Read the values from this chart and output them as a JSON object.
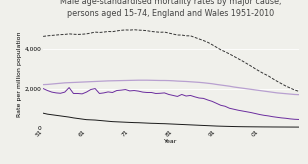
{
  "title": "Male age-standardised mortality rates by major cause,\npersons aged 15-74, England and Wales 1951-2010",
  "xlabel": "Year",
  "ylabel": "Rate per million population",
  "years": [
    1951,
    1952,
    1953,
    1954,
    1955,
    1956,
    1957,
    1958,
    1959,
    1960,
    1961,
    1962,
    1963,
    1964,
    1965,
    1966,
    1967,
    1968,
    1969,
    1970,
    1971,
    1972,
    1973,
    1974,
    1975,
    1976,
    1977,
    1978,
    1979,
    1980,
    1981,
    1982,
    1983,
    1984,
    1985,
    1986,
    1987,
    1988,
    1989,
    1990,
    1991,
    1992,
    1993,
    1994,
    1995,
    1996,
    1997,
    1998,
    1999,
    2000,
    2001,
    2002,
    2003,
    2004,
    2005,
    2006,
    2007,
    2008,
    2009,
    2010
  ],
  "infections": [
    750,
    700,
    670,
    640,
    610,
    580,
    550,
    510,
    480,
    450,
    420,
    410,
    400,
    380,
    360,
    340,
    320,
    310,
    300,
    290,
    280,
    270,
    265,
    255,
    245,
    235,
    230,
    220,
    215,
    205,
    195,
    185,
    175,
    165,
    155,
    145,
    135,
    125,
    115,
    105,
    95,
    88,
    82,
    76,
    70,
    65,
    62,
    59,
    57,
    55,
    53,
    51,
    50,
    48,
    47,
    46,
    45,
    44,
    43,
    42
  ],
  "respiratory": [
    2000,
    1900,
    1820,
    1780,
    1760,
    1820,
    2050,
    1750,
    1750,
    1730,
    1820,
    1950,
    2000,
    1750,
    1780,
    1830,
    1800,
    1900,
    1920,
    1950,
    1880,
    1900,
    1870,
    1820,
    1800,
    1800,
    1750,
    1760,
    1780,
    1700,
    1650,
    1600,
    1700,
    1620,
    1650,
    1580,
    1520,
    1500,
    1420,
    1350,
    1250,
    1150,
    1100,
    1000,
    950,
    900,
    860,
    820,
    780,
    730,
    680,
    640,
    610,
    570,
    540,
    510,
    490,
    460,
    440,
    430
  ],
  "cancers": [
    2200,
    2210,
    2230,
    2250,
    2270,
    2290,
    2300,
    2310,
    2320,
    2330,
    2340,
    2350,
    2360,
    2370,
    2380,
    2390,
    2395,
    2400,
    2405,
    2410,
    2415,
    2420,
    2425,
    2425,
    2425,
    2420,
    2415,
    2410,
    2410,
    2405,
    2395,
    2380,
    2370,
    2360,
    2345,
    2330,
    2315,
    2295,
    2270,
    2245,
    2210,
    2180,
    2150,
    2120,
    2080,
    2050,
    2020,
    1990,
    1960,
    1930,
    1900,
    1870,
    1840,
    1810,
    1780,
    1760,
    1740,
    1720,
    1700,
    1690
  ],
  "circulatory": [
    4650,
    4680,
    4700,
    4720,
    4740,
    4750,
    4780,
    4760,
    4750,
    4760,
    4780,
    4820,
    4870,
    4850,
    4870,
    4900,
    4890,
    4930,
    4960,
    4980,
    4970,
    4990,
    4970,
    4960,
    4940,
    4900,
    4880,
    4860,
    4870,
    4820,
    4770,
    4720,
    4720,
    4680,
    4680,
    4600,
    4520,
    4440,
    4350,
    4230,
    4100,
    3970,
    3870,
    3760,
    3640,
    3520,
    3400,
    3270,
    3140,
    3000,
    2870,
    2750,
    2640,
    2500,
    2370,
    2250,
    2130,
    2030,
    1930,
    1860
  ],
  "infections_color": "#1a1a1a",
  "respiratory_color": "#6b2d9e",
  "cancers_color": "#b8a0d0",
  "circulatory_color": "#333333",
  "ylim": [
    0,
    5500
  ],
  "yticks": [
    0,
    2000,
    4000
  ],
  "xticks": [
    1951,
    1961,
    1971,
    1981,
    1991,
    2001
  ],
  "xtick_labels": [
    "51",
    "61",
    "71",
    "81",
    "91",
    "01"
  ],
  "background_color": "#f0f0eb",
  "title_fontsize": 5.8,
  "label_fontsize": 4.5,
  "tick_fontsize": 4.2,
  "legend_fontsize": 4.5
}
